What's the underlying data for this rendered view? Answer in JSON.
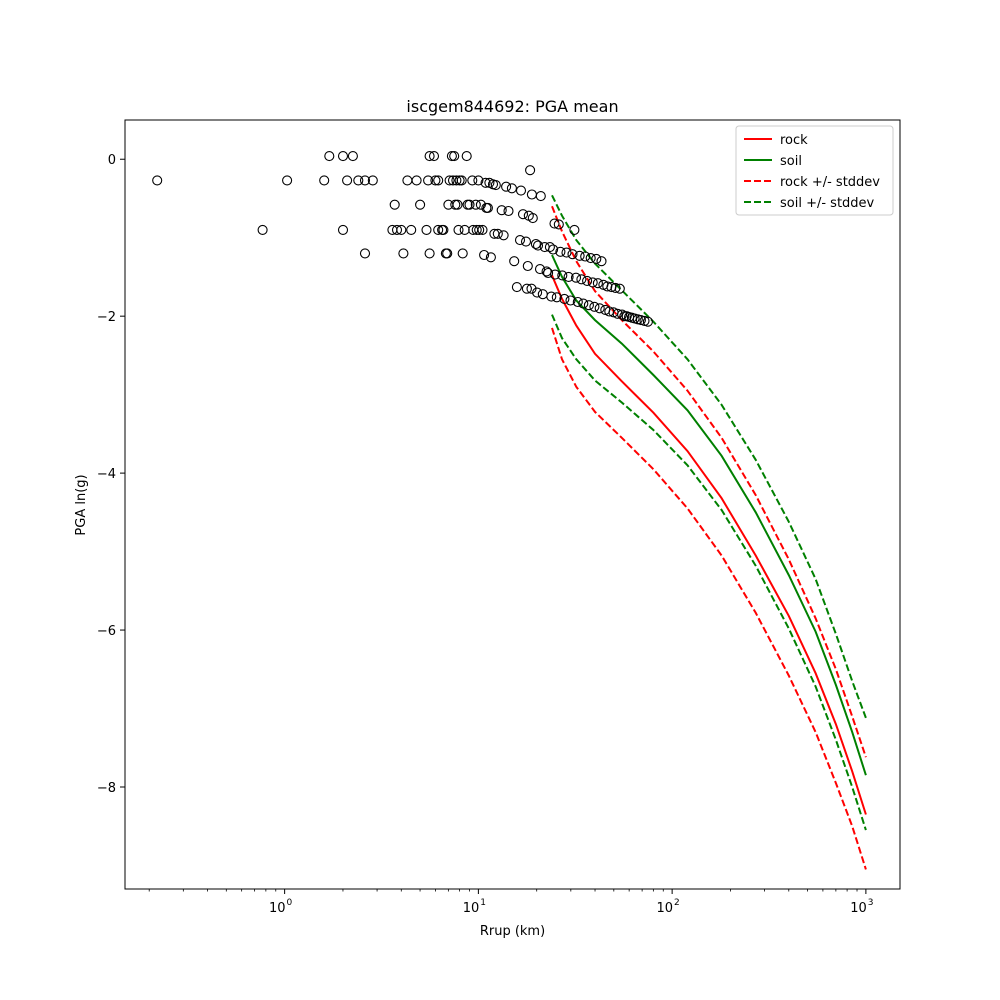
{
  "chart_data": {
    "type": "scatter",
    "title": "iscgem844692: PGA mean",
    "xlabel": "Rrup (km)",
    "ylabel": "PGA ln(g)",
    "xscale": "log",
    "xlim": [
      0.15,
      1500
    ],
    "ylim": [
      -9.3,
      0.5
    ],
    "x_ticks": [
      {
        "value": 1,
        "base": "10",
        "exp": "0"
      },
      {
        "value": 10,
        "base": "10",
        "exp": "1"
      },
      {
        "value": 100,
        "base": "10",
        "exp": "2"
      },
      {
        "value": 1000,
        "base": "10",
        "exp": "3"
      }
    ],
    "y_ticks": [
      {
        "value": 0,
        "label": "0"
      },
      {
        "value": -2,
        "label": "−2"
      },
      {
        "value": -4,
        "label": "−4"
      },
      {
        "value": -6,
        "label": "−6"
      },
      {
        "value": -8,
        "label": "−8"
      }
    ],
    "legend_position": "top-right",
    "observations": {
      "marker": "open-circle",
      "color": "#000000",
      "points": [
        [
          0.22,
          -0.27
        ],
        [
          0.77,
          -0.9
        ],
        [
          1.03,
          -0.27
        ],
        [
          1.6,
          -0.27
        ],
        [
          1.7,
          0.04
        ],
        [
          2.0,
          0.04
        ],
        [
          2.0,
          -0.9
        ],
        [
          2.1,
          -0.27
        ],
        [
          2.25,
          0.04
        ],
        [
          2.4,
          -0.27
        ],
        [
          2.6,
          -1.2
        ],
        [
          2.6,
          -0.27
        ],
        [
          2.85,
          -0.27
        ],
        [
          3.6,
          -0.9
        ],
        [
          3.7,
          -0.58
        ],
        [
          3.8,
          -0.9
        ],
        [
          4.0,
          -0.9
        ],
        [
          4.1,
          -1.2
        ],
        [
          4.3,
          -0.27
        ],
        [
          4.5,
          -0.9
        ],
        [
          4.8,
          -0.27
        ],
        [
          5.0,
          -0.58
        ],
        [
          5.4,
          -0.9
        ],
        [
          5.5,
          -0.27
        ],
        [
          5.6,
          0.04
        ],
        [
          5.6,
          -1.2
        ],
        [
          5.9,
          0.04
        ],
        [
          6.0,
          -0.27
        ],
        [
          6.2,
          -0.27
        ],
        [
          6.2,
          -0.9
        ],
        [
          6.5,
          -0.9
        ],
        [
          6.6,
          -0.9
        ],
        [
          6.8,
          -1.2
        ],
        [
          6.9,
          -1.2
        ],
        [
          7.0,
          -0.58
        ],
        [
          7.1,
          -0.27
        ],
        [
          7.3,
          0.04
        ],
        [
          7.4,
          -0.27
        ],
        [
          7.5,
          0.04
        ],
        [
          7.6,
          -0.58
        ],
        [
          7.7,
          -0.27
        ],
        [
          7.8,
          -0.58
        ],
        [
          7.9,
          -0.9
        ],
        [
          8.0,
          -0.27
        ],
        [
          8.2,
          -0.27
        ],
        [
          8.3,
          -1.2
        ],
        [
          8.5,
          -0.9
        ],
        [
          8.7,
          0.04
        ],
        [
          8.8,
          -0.58
        ],
        [
          9.0,
          -0.58
        ],
        [
          9.3,
          -0.27
        ],
        [
          9.4,
          -0.9
        ],
        [
          9.7,
          -0.58
        ],
        [
          9.8,
          -0.9
        ],
        [
          10.0,
          -0.27
        ],
        [
          10.1,
          -0.9
        ],
        [
          10.3,
          -0.58
        ],
        [
          10.5,
          -0.9
        ],
        [
          10.7,
          -1.22
        ],
        [
          10.9,
          -0.3
        ],
        [
          11.0,
          -0.62
        ],
        [
          11.2,
          -0.62
        ],
        [
          11.4,
          -0.3
        ],
        [
          11.6,
          -1.25
        ],
        [
          11.9,
          -0.32
        ],
        [
          12.1,
          -0.95
        ],
        [
          12.3,
          -0.33
        ],
        [
          12.6,
          -0.95
        ],
        [
          13.2,
          -0.65
        ],
        [
          13.5,
          -0.97
        ],
        [
          13.9,
          -0.35
        ],
        [
          14.3,
          -0.66
        ],
        [
          14.9,
          -0.37
        ],
        [
          15.3,
          -1.3
        ],
        [
          15.8,
          -1.63
        ],
        [
          16.4,
          -1.03
        ],
        [
          16.6,
          -0.4
        ],
        [
          17.0,
          -0.7
        ],
        [
          17.6,
          -1.05
        ],
        [
          17.8,
          -1.65
        ],
        [
          18.0,
          -1.36
        ],
        [
          18.2,
          -0.72
        ],
        [
          18.5,
          -0.14
        ],
        [
          18.8,
          -1.65
        ],
        [
          18.9,
          -0.45
        ],
        [
          19.1,
          -0.75
        ],
        [
          19.8,
          -1.08
        ],
        [
          20.1,
          -1.7
        ],
        [
          20.3,
          -1.1
        ],
        [
          20.8,
          -1.4
        ],
        [
          21.0,
          -0.47
        ],
        [
          21.5,
          -1.72
        ],
        [
          22.0,
          -1.12
        ],
        [
          22.5,
          -1.43
        ],
        [
          22.9,
          -1.45
        ],
        [
          23.4,
          -1.12
        ],
        [
          23.8,
          -1.75
        ],
        [
          24.3,
          -1.15
        ],
        [
          24.7,
          -0.82
        ],
        [
          24.9,
          -1.47
        ],
        [
          25.4,
          -1.76
        ],
        [
          26.0,
          -0.83
        ],
        [
          26.5,
          -1.18
        ],
        [
          27.1,
          -1.48
        ],
        [
          27.8,
          -1.78
        ],
        [
          28.5,
          -1.19
        ],
        [
          29.2,
          -1.5
        ],
        [
          29.9,
          -1.8
        ],
        [
          30.6,
          -1.21
        ],
        [
          31.3,
          -0.9
        ],
        [
          31.9,
          -1.51
        ],
        [
          32.6,
          -1.82
        ],
        [
          33.3,
          -1.23
        ],
        [
          34.0,
          -1.53
        ],
        [
          34.8,
          -1.84
        ],
        [
          35.6,
          -1.24
        ],
        [
          36.4,
          -1.55
        ],
        [
          37.2,
          -1.86
        ],
        [
          38.0,
          -1.26
        ],
        [
          38.9,
          -1.57
        ],
        [
          39.7,
          -1.88
        ],
        [
          40.6,
          -1.27
        ],
        [
          41.4,
          -1.58
        ],
        [
          42.3,
          -1.9
        ],
        [
          43.2,
          -1.3
        ],
        [
          44.2,
          -1.6
        ],
        [
          45.2,
          -1.92
        ],
        [
          46.3,
          -1.62
        ],
        [
          47.4,
          -1.94
        ],
        [
          48.6,
          -1.63
        ],
        [
          49.8,
          -1.95
        ],
        [
          51.0,
          -1.64
        ],
        [
          52.3,
          -1.97
        ],
        [
          53.7,
          -1.65
        ],
        [
          55.2,
          -1.98
        ],
        [
          56.7,
          -2.0
        ],
        [
          58.3,
          -2.0
        ],
        [
          60.0,
          -2.01
        ],
        [
          62.0,
          -2.02
        ],
        [
          64.0,
          -2.03
        ],
        [
          66.5,
          -2.04
        ],
        [
          69.0,
          -2.05
        ],
        [
          72.0,
          -2.06
        ],
        [
          75.0,
          -2.07
        ]
      ]
    },
    "series": [
      {
        "name": "rock",
        "color": "#ff0000",
        "dash": "solid",
        "x": [
          24,
          27,
          32,
          40,
          55,
          80,
          120,
          180,
          270,
          400,
          550,
          700,
          850,
          1000
        ],
        "y": [
          -1.48,
          -1.78,
          -2.12,
          -2.48,
          -2.83,
          -3.23,
          -3.72,
          -4.32,
          -5.05,
          -5.82,
          -6.55,
          -7.2,
          -7.8,
          -8.35
        ]
      },
      {
        "name": "soil",
        "color": "#008000",
        "dash": "solid",
        "x": [
          24,
          27,
          32,
          40,
          55,
          80,
          120,
          180,
          270,
          400,
          550,
          700,
          850,
          1000
        ],
        "y": [
          -1.22,
          -1.5,
          -1.8,
          -2.05,
          -2.35,
          -2.75,
          -3.2,
          -3.78,
          -4.5,
          -5.3,
          -6.02,
          -6.7,
          -7.3,
          -7.85
        ]
      },
      {
        "name": "rock +/- stddev",
        "color": "#ff0000",
        "dash": "dashed",
        "x": [
          24,
          27,
          32,
          40,
          55,
          80,
          120,
          180,
          270,
          400,
          550,
          700,
          850,
          1000
        ],
        "y": [
          -0.6,
          -0.92,
          -1.3,
          -1.68,
          -2.05,
          -2.45,
          -2.95,
          -3.55,
          -4.28,
          -5.1,
          -5.85,
          -6.5,
          -7.1,
          -7.62
        ]
      },
      {
        "name": "",
        "color": "#ff0000",
        "dash": "dashed",
        "x": [
          24,
          27,
          32,
          40,
          55,
          80,
          120,
          180,
          270,
          400,
          550,
          700,
          850,
          1000
        ],
        "y": [
          -2.15,
          -2.55,
          -2.9,
          -3.22,
          -3.55,
          -3.95,
          -4.45,
          -5.05,
          -5.78,
          -6.58,
          -7.3,
          -7.95,
          -8.5,
          -9.05
        ]
      },
      {
        "name": "soil +/- stddev",
        "color": "#008000",
        "dash": "dashed",
        "x": [
          24,
          27,
          32,
          40,
          55,
          80,
          120,
          180,
          270,
          400,
          550,
          700,
          850,
          1000
        ],
        "y": [
          -0.46,
          -0.72,
          -1.03,
          -1.33,
          -1.67,
          -2.07,
          -2.55,
          -3.13,
          -3.83,
          -4.62,
          -5.35,
          -6.05,
          -6.65,
          -7.12
        ]
      },
      {
        "name": "",
        "color": "#008000",
        "dash": "dashed",
        "x": [
          24,
          27,
          32,
          40,
          55,
          80,
          120,
          180,
          270,
          400,
          550,
          700,
          850,
          1000
        ],
        "y": [
          -1.98,
          -2.28,
          -2.55,
          -2.82,
          -3.1,
          -3.45,
          -3.9,
          -4.47,
          -5.18,
          -5.98,
          -6.72,
          -7.4,
          -8.0,
          -8.55
        ]
      }
    ],
    "legend": [
      {
        "label": "rock",
        "color": "#ff0000",
        "dash": "solid"
      },
      {
        "label": "soil",
        "color": "#008000",
        "dash": "solid"
      },
      {
        "label": "rock +/- stddev",
        "color": "#ff0000",
        "dash": "dashed"
      },
      {
        "label": "soil +/- stddev",
        "color": "#008000",
        "dash": "dashed"
      }
    ]
  }
}
